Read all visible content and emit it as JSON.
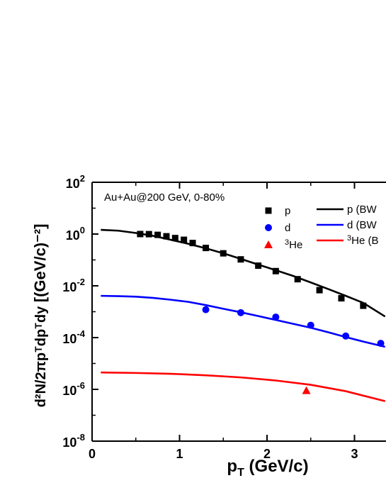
{
  "chart_data": {
    "type": "scatter",
    "title": "",
    "annotation": "Au+Au@200 GeV, 0-80%",
    "xlabel": {
      "base": "p",
      "sub": "T",
      "rest": " (GeV/c)"
    },
    "ylabel": {
      "main": "d²N/2πpᵀdpᵀdy",
      "unit": "[(GeV/c)⁻²]"
    },
    "xlim": [
      0,
      3.35
    ],
    "ylim_log10": [
      -8,
      2
    ],
    "y_scale": "log",
    "x_ticks": [
      {
        "value": 0,
        "label": "0"
      },
      {
        "value": 1,
        "label": "1"
      },
      {
        "value": 2,
        "label": "2"
      },
      {
        "value": 3,
        "label": "3"
      }
    ],
    "y_ticks": [
      {
        "exp": 2,
        "base": "10",
        "sup": "2"
      },
      {
        "exp": 0,
        "base": "10",
        "sup": "0"
      },
      {
        "exp": -2,
        "base": "10",
        "sup": "-2"
      },
      {
        "exp": -4,
        "base": "10",
        "sup": "-4"
      },
      {
        "exp": -6,
        "base": "10",
        "sup": "-6"
      },
      {
        "exp": -8,
        "base": "10",
        "sup": "-8"
      }
    ],
    "series": [
      {
        "name": "p",
        "kind": "points",
        "marker": "square",
        "color": "#000000",
        "x": [
          0.55,
          0.65,
          0.75,
          0.85,
          0.95,
          1.05,
          1.15,
          1.3,
          1.5,
          1.7,
          1.9,
          2.1,
          2.35,
          2.6,
          2.85,
          3.1
        ],
        "y": [
          1.0,
          0.99,
          0.93,
          0.82,
          0.7,
          0.6,
          0.45,
          0.29,
          0.18,
          0.105,
          0.06,
          0.037,
          0.018,
          0.0068,
          0.0033,
          0.0017
        ]
      },
      {
        "name": "d",
        "kind": "points",
        "marker": "circle",
        "color": "#0000ff",
        "x": [
          1.3,
          1.7,
          2.1,
          2.5,
          2.9,
          3.3
        ],
        "y": [
          0.0012,
          0.00092,
          0.00062,
          0.0003,
          0.000115,
          6e-05
        ]
      },
      {
        "name": "³He",
        "kind": "points",
        "marker": "triangle",
        "color": "#ff0000",
        "x": [
          2.45
        ],
        "y": [
          9e-07
        ]
      },
      {
        "name": "p (BW",
        "kind": "line",
        "color": "#000000",
        "x": [
          0.1,
          0.3,
          0.5,
          0.7,
          0.9,
          1.1,
          1.3,
          1.5,
          1.7,
          1.9,
          2.1,
          2.3,
          2.5,
          2.7,
          2.9,
          3.1,
          3.35
        ],
        "y": [
          1.45,
          1.35,
          1.1,
          0.85,
          0.6,
          0.42,
          0.28,
          0.18,
          0.11,
          0.066,
          0.04,
          0.024,
          0.0135,
          0.0075,
          0.0041,
          0.0022,
          0.00065
        ]
      },
      {
        "name": "d (BW",
        "kind": "line",
        "color": "#0000ff",
        "x": [
          0.1,
          0.3,
          0.5,
          0.7,
          0.9,
          1.1,
          1.3,
          1.5,
          1.7,
          1.9,
          2.1,
          2.3,
          2.5,
          2.7,
          2.9,
          3.1,
          3.35
        ],
        "y": [
          0.0041,
          0.004,
          0.0038,
          0.0034,
          0.0029,
          0.0024,
          0.0018,
          0.0013,
          0.00095,
          0.00068,
          0.00048,
          0.00034,
          0.00024,
          0.00016,
          0.000105,
          7e-05,
          4.4e-05
        ]
      },
      {
        "name": "³He (B",
        "kind": "line",
        "color": "#ff0000",
        "x": [
          0.1,
          0.5,
          0.9,
          1.3,
          1.7,
          2.1,
          2.5,
          2.9,
          3.35
        ],
        "y": [
          4.5e-06,
          4.3e-06,
          4e-06,
          3.5e-06,
          2.9e-06,
          2.2e-06,
          1.5e-06,
          8.5e-07,
          3.5e-07
        ]
      }
    ],
    "legend": {
      "placement": "top-right",
      "markers": [
        {
          "label": "p",
          "marker": "square",
          "color": "#000000"
        },
        {
          "label": "d",
          "marker": "circle",
          "color": "#0000ff"
        },
        {
          "label_sup": "3",
          "label_rest": "He",
          "marker": "triangle",
          "color": "#ff0000"
        }
      ],
      "lines": [
        {
          "label": "p (BW",
          "color": "#000000"
        },
        {
          "label": "d (BW",
          "color": "#0000ff"
        },
        {
          "label_sup": "3",
          "label_rest": "He (B",
          "color": "#ff0000"
        }
      ]
    },
    "grid": false
  }
}
